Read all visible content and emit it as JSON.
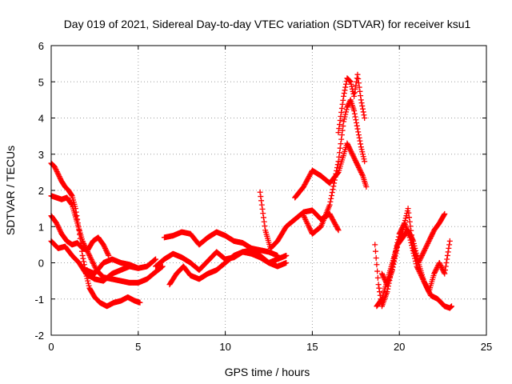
{
  "chart_data": {
    "type": "scatter",
    "title": "Day 019 of 2021, Sidereal Day-to-day VTEC variation (SDTVAR) for receiver ksu1",
    "xlabel": "GPS time / hours",
    "ylabel": "SDTVAR / TECUs",
    "xlim": [
      0,
      25
    ],
    "ylim": [
      -2,
      6
    ],
    "xticks": [
      0,
      5,
      10,
      15,
      20,
      25
    ],
    "yticks": [
      -2,
      -1,
      0,
      1,
      2,
      3,
      4,
      5,
      6
    ],
    "grid": true,
    "marker": "+",
    "color": "#ff0000",
    "series": [
      {
        "x": [
          0.0,
          0.2,
          0.4,
          0.6,
          0.8,
          1.0,
          1.2,
          1.4,
          1.6,
          1.8,
          2.0,
          2.2,
          2.5,
          2.8,
          3.2,
          3.6,
          4.0,
          4.4,
          4.8,
          5.1
        ],
        "y": [
          2.75,
          2.65,
          2.45,
          2.25,
          2.1,
          2.0,
          1.85,
          1.5,
          0.9,
          0.2,
          -0.3,
          -0.7,
          -0.95,
          -1.1,
          -1.2,
          -1.1,
          -1.05,
          -0.95,
          -1.05,
          -1.1
        ]
      },
      {
        "x": [
          0.0,
          0.3,
          0.6,
          0.9,
          1.2,
          1.5,
          1.8,
          2.2,
          2.6,
          3.0,
          3.5,
          4.0,
          4.5,
          5.0,
          5.5,
          6.0,
          6.4
        ],
        "y": [
          1.85,
          1.8,
          1.75,
          1.8,
          1.6,
          1.1,
          0.6,
          0.2,
          -0.2,
          -0.4,
          -0.45,
          -0.5,
          -0.55,
          -0.55,
          -0.45,
          -0.25,
          -0.1
        ]
      },
      {
        "x": [
          0.0,
          0.3,
          0.6,
          0.9,
          1.2,
          1.5,
          1.8,
          2.1,
          2.4,
          2.7,
          3.0,
          3.3
        ],
        "y": [
          1.3,
          1.1,
          0.8,
          0.6,
          0.5,
          0.55,
          0.4,
          0.35,
          0.6,
          0.7,
          0.5,
          0.2
        ]
      },
      {
        "x": [
          0.0,
          0.4,
          0.8,
          1.2,
          1.6,
          2.0,
          2.5,
          3.0,
          3.5,
          4.0,
          4.5,
          5.0
        ],
        "y": [
          0.6,
          0.4,
          0.45,
          0.2,
          0.0,
          -0.3,
          -0.45,
          -0.5,
          -0.3,
          -0.2,
          -0.1,
          -0.15
        ]
      },
      {
        "x": [
          2.0,
          2.5,
          3.0,
          3.5,
          4.0,
          4.5,
          5.0,
          5.5,
          6.0
        ],
        "y": [
          -0.2,
          -0.3,
          0.0,
          0.1,
          0.0,
          -0.05,
          -0.15,
          -0.1,
          0.1
        ]
      },
      {
        "x": [
          6.5,
          7.0,
          7.5,
          8.0,
          8.5,
          9.0,
          9.5,
          10.0,
          10.5,
          11.0,
          11.5,
          12.0,
          12.5,
          13.0
        ],
        "y": [
          0.7,
          0.75,
          0.85,
          0.8,
          0.5,
          0.7,
          0.85,
          0.75,
          0.6,
          0.55,
          0.4,
          0.35,
          0.3,
          0.2
        ]
      },
      {
        "x": [
          6.0,
          6.5,
          7.0,
          7.5,
          8.0,
          8.5,
          9.0,
          9.5,
          10.0,
          10.5,
          11.0,
          11.5,
          12.0,
          12.5,
          13.0,
          13.5
        ],
        "y": [
          -0.1,
          0.1,
          0.25,
          0.15,
          0.0,
          -0.2,
          0.05,
          0.3,
          0.1,
          0.15,
          0.3,
          0.35,
          0.2,
          0.0,
          0.1,
          0.2
        ]
      },
      {
        "x": [
          6.8,
          7.2,
          7.6,
          8.0,
          8.5,
          9.0,
          9.5,
          10.0,
          10.5,
          11.0,
          11.5,
          12.0,
          12.5,
          13.0,
          13.5
        ],
        "y": [
          -0.6,
          -0.3,
          -0.1,
          -0.35,
          -0.45,
          -0.3,
          -0.2,
          0.0,
          0.2,
          0.3,
          0.25,
          0.15,
          0.0,
          -0.1,
          0.0
        ]
      },
      {
        "x": [
          12.0,
          12.3,
          12.6,
          13.0,
          13.5,
          14.0,
          14.5,
          15.0,
          15.5,
          16.0,
          16.5
        ],
        "y": [
          1.95,
          0.9,
          0.4,
          0.6,
          1.0,
          1.2,
          1.4,
          1.45,
          1.2,
          1.35,
          0.9
        ]
      },
      {
        "x": [
          14.0,
          14.5,
          15.0,
          15.5,
          16.0,
          16.5,
          17.0,
          17.3,
          17.6,
          17.9,
          18.1
        ],
        "y": [
          1.8,
          2.1,
          2.55,
          2.4,
          2.2,
          2.5,
          3.3,
          3.0,
          2.7,
          2.4,
          2.1
        ]
      },
      {
        "x": [
          14.5,
          15.0,
          15.5,
          16.0,
          16.5,
          16.8,
          17.0,
          17.2,
          17.4,
          17.6,
          17.8,
          18.0
        ],
        "y": [
          1.3,
          0.8,
          1.0,
          1.6,
          2.8,
          3.9,
          4.3,
          4.5,
          4.2,
          3.7,
          3.2,
          2.8
        ]
      },
      {
        "x": [
          16.5,
          16.8,
          17.0,
          17.2,
          17.4,
          17.6,
          17.8,
          18.0
        ],
        "y": [
          3.6,
          4.6,
          5.1,
          5.0,
          4.6,
          5.2,
          4.5,
          4.0
        ]
      },
      {
        "x": [
          18.6,
          18.8,
          19.0,
          19.3,
          19.6,
          20.0,
          20.3,
          20.6,
          21.0,
          21.4,
          21.8,
          22.2,
          22.6,
          22.9,
          23.0
        ],
        "y": [
          0.5,
          -0.6,
          -1.2,
          -0.8,
          -0.1,
          0.8,
          1.1,
          0.7,
          -0.1,
          -0.5,
          -0.9,
          -1.0,
          -1.2,
          -1.25,
          -1.2
        ]
      },
      {
        "x": [
          18.7,
          19.0,
          19.3,
          19.6,
          19.9,
          20.2,
          20.5,
          20.8,
          21.1,
          21.4,
          21.7,
          22.0,
          22.3,
          22.6
        ],
        "y": [
          -1.2,
          -1.0,
          -0.5,
          0.0,
          0.5,
          0.9,
          1.5,
          0.4,
          0.0,
          0.3,
          0.6,
          0.9,
          1.1,
          1.35
        ]
      },
      {
        "x": [
          19.0,
          19.3,
          19.6,
          19.9,
          20.2,
          20.5,
          20.8,
          21.1,
          21.4,
          21.7,
          22.0,
          22.3,
          22.6,
          22.9
        ],
        "y": [
          -0.3,
          -0.6,
          -0.2,
          0.5,
          0.7,
          0.9,
          0.6,
          0.0,
          -0.5,
          -0.8,
          -0.3,
          0.0,
          -0.3,
          0.6
        ]
      }
    ]
  }
}
